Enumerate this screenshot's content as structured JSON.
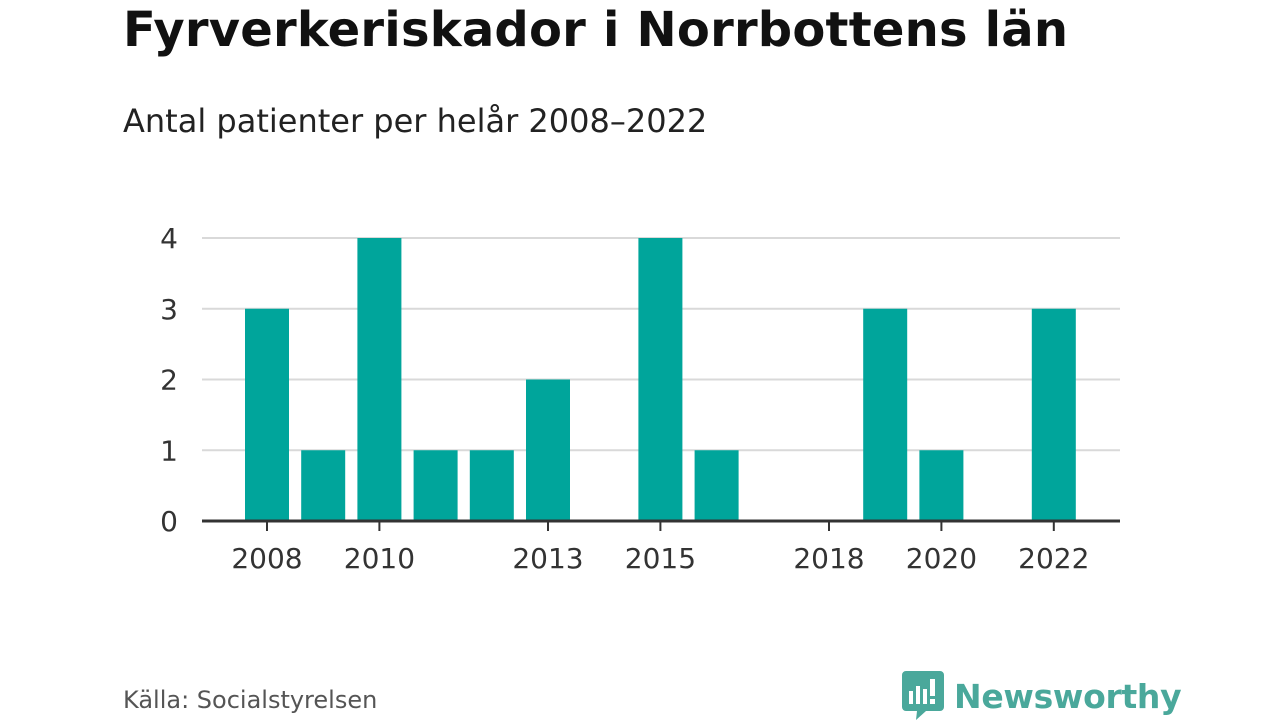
{
  "title": "Fyrverkeriskador i Norrbottens län",
  "subtitle": "Antal patienter per helår 2008–2022",
  "source": "Källa: Socialstyrelsen",
  "brand": "Newsworthy",
  "colors": {
    "bar": "#00a59b",
    "grid": "#d9d9d9",
    "axis": "#333333",
    "brand": "#4aa89b"
  },
  "chart_data": {
    "type": "bar",
    "categories": [
      "2008",
      "2009",
      "2010",
      "2011",
      "2012",
      "2013",
      "2014",
      "2015",
      "2016",
      "2017",
      "2018",
      "2019",
      "2020",
      "2021",
      "2022"
    ],
    "values": [
      3,
      1,
      4,
      1,
      1,
      2,
      0,
      4,
      1,
      0,
      0,
      3,
      1,
      0,
      3
    ],
    "x_tick_labels": [
      "2008",
      "2010",
      "2013",
      "2015",
      "2018",
      "2020",
      "2022"
    ],
    "y_ticks": [
      0,
      1,
      2,
      3,
      4
    ],
    "ylim": [
      0,
      4
    ],
    "grid": true,
    "xlabel": "",
    "ylabel": ""
  }
}
